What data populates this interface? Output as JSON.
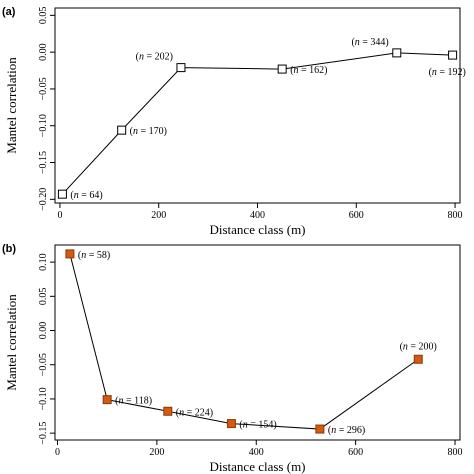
{
  "chart_data": [
    {
      "type": "line",
      "panel_label": "(a)",
      "xlabel": "Distance class (m)",
      "ylabel": "Mantel correlation",
      "xlim": [
        -10,
        810
      ],
      "ylim": [
        -0.205,
        0.06
      ],
      "xticks": [
        0,
        200,
        400,
        600,
        800
      ],
      "yticks": [
        0.05,
        0.0,
        -0.05,
        -0.1,
        -0.15,
        -0.2
      ],
      "ytick_labels": [
        "0.05",
        "0.00",
        "−0.05",
        "−0.10",
        "−0.15",
        "−0.20"
      ],
      "marker_fill": "#ffffff",
      "points": [
        {
          "x": 5,
          "y": -0.193,
          "n": "64"
        },
        {
          "x": 125,
          "y": -0.106,
          "n": "170"
        },
        {
          "x": 245,
          "y": -0.021,
          "n": "202"
        },
        {
          "x": 450,
          "y": -0.023,
          "n": "162"
        },
        {
          "x": 682,
          "y": -0.001,
          "n": "344"
        },
        {
          "x": 795,
          "y": -0.004,
          "n": "192"
        }
      ]
    },
    {
      "type": "line",
      "panel_label": "(b)",
      "xlabel": "Distance class (m)",
      "ylabel": "Mantel correlation",
      "xlim": [
        -5,
        810
      ],
      "ylim": [
        -0.16,
        0.125
      ],
      "xticks": [
        0,
        200,
        400,
        600,
        800
      ],
      "yticks": [
        0.1,
        0.05,
        0.0,
        -0.05,
        -0.1,
        -0.15
      ],
      "ytick_labels": [
        "0.10",
        "0.05",
        "0.00",
        "−0.05",
        "−0.10",
        "−0.15"
      ],
      "marker_fill": "#d35a10",
      "points": [
        {
          "x": 25,
          "y": 0.112,
          "n": "58"
        },
        {
          "x": 100,
          "y": -0.101,
          "n": "118"
        },
        {
          "x": 222,
          "y": -0.118,
          "n": "224"
        },
        {
          "x": 350,
          "y": -0.136,
          "n": "154"
        },
        {
          "x": 528,
          "y": -0.144,
          "n": "296"
        },
        {
          "x": 726,
          "y": -0.042,
          "n": "200"
        }
      ]
    }
  ]
}
